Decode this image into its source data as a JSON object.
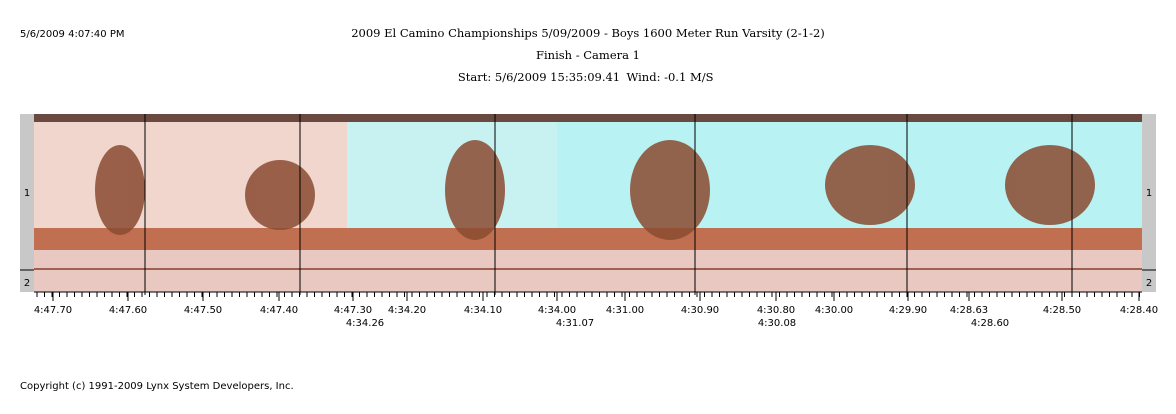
{
  "timestamp": "5/6/2009 4:07:40 PM",
  "title": "2009 El Camino Championships  5/09/2009 - Boys 1600 Meter Run Varsity (2-1-2)",
  "subtitle": "Finish - Camera 1",
  "start": "Start: 5/6/2009 15:35:09.41",
  "wind": "Wind: -0.1 M/S",
  "lanes": [
    "1",
    "2"
  ],
  "time_labels": [
    "4:47.70",
    "4:47.60",
    "4:47.50",
    "4:47.40",
    "4:47.30",
    "4:34.20",
    "4:34.10",
    "4:34.00",
    "4:31.00",
    "4:30.90",
    "4:30.80",
    "4:30.00",
    "4:29.90",
    "4:28.63",
    "4:28.50",
    "4:28.40"
  ],
  "time_labels_lower": [
    "4:34.26",
    "4:31.07",
    "4:30.08",
    "4:28.60"
  ],
  "copyright": "Copyright (c) 1991-2009 Lynx System Developers, Inc."
}
